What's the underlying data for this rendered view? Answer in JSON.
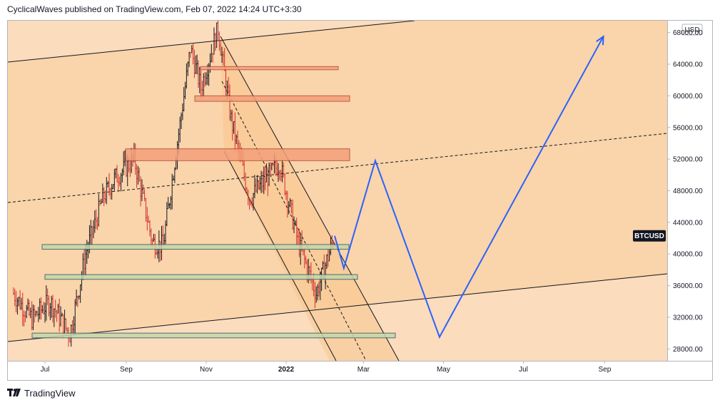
{
  "header": {
    "text": "CyclicalWaves published on TradingView.com, Feb 07, 2022 14:24 UTC+3:30"
  },
  "footer": {
    "brand": "TradingView",
    "logo_icon": "tradingview-logo-icon"
  },
  "chart_data": {
    "type": "candlestick",
    "symbol": "BTCUSD",
    "currency": "USD",
    "x_tick_labels": [
      "Jul",
      "Sep",
      "Nov",
      "2022",
      "Mar",
      "May",
      "Jul",
      "Sep"
    ],
    "y_ticks": [
      28000,
      32000,
      36000,
      40000,
      44000,
      48000,
      52000,
      56000,
      60000,
      64000,
      68000
    ],
    "y_tick_labels": [
      "28000.00",
      "32000.00",
      "36000.00",
      "40000.00",
      "44000.00",
      "48000.00",
      "52000.00",
      "56000.00",
      "60000.00",
      "64000.00",
      "68000.00"
    ],
    "ylim": [
      26500,
      69500
    ],
    "last_price": 42300,
    "price_series_approx": [
      [
        "2021-06-07",
        35000
      ],
      [
        "2021-06-21",
        31800
      ],
      [
        "2021-07-05",
        34000
      ],
      [
        "2021-07-20",
        29800
      ],
      [
        "2021-08-01",
        40000
      ],
      [
        "2021-08-14",
        47000
      ],
      [
        "2021-08-23",
        49500
      ],
      [
        "2021-09-07",
        52000
      ],
      [
        "2021-09-21",
        41500
      ],
      [
        "2021-09-29",
        41000
      ],
      [
        "2021-10-15",
        60000
      ],
      [
        "2021-10-20",
        66000
      ],
      [
        "2021-10-28",
        61000
      ],
      [
        "2021-11-10",
        68500
      ],
      [
        "2021-11-20",
        57000
      ],
      [
        "2021-12-04",
        47000
      ],
      [
        "2021-12-27",
        51500
      ],
      [
        "2022-01-10",
        41500
      ],
      [
        "2022-01-24",
        35000
      ],
      [
        "2022-02-07",
        42300
      ]
    ],
    "projection": [
      [
        "2022-02-07",
        42300
      ],
      [
        "2022-02-14",
        38200
      ],
      [
        "2022-03-10",
        51800
      ],
      [
        "2022-04-28",
        29500
      ],
      [
        "2022-08-31",
        67500
      ]
    ],
    "colors": {
      "up": "#131722",
      "down": "#d32f2f",
      "projection": "#2962ff",
      "chart_background": "#fbdcbd",
      "channel_fill": "#fad2a4",
      "zone_red": "#f4a07a",
      "zone_green": "#c6d7a8"
    },
    "horizontal_zones": [
      {
        "kind": "supply",
        "from": 63300,
        "to": 63700
      },
      {
        "kind": "supply",
        "from": 59300,
        "to": 60000
      },
      {
        "kind": "supply",
        "from": 51800,
        "to": 53300
      },
      {
        "kind": "demand",
        "from": 40600,
        "to": 41200
      },
      {
        "kind": "demand",
        "from": 36800,
        "to": 37400
      },
      {
        "kind": "demand",
        "from": 29400,
        "to": 30000
      }
    ]
  }
}
